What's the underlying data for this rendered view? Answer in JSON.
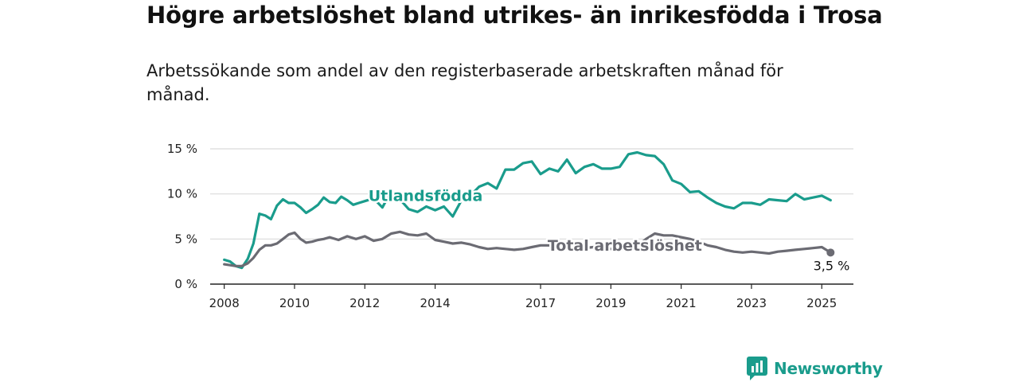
{
  "title": "Högre arbetslöshet bland utrikes- än inrikesfödda i Trosa",
  "subtitle": "Arbetssökande som andel av den registerbaserade arbetskraften månad för månad.",
  "brand": {
    "name": "Newsworthy",
    "icon": "newsworthy-logo-icon",
    "color": "#1a9c8c"
  },
  "chart_data": {
    "type": "line",
    "title": "",
    "xlabel": "",
    "ylabel": "",
    "ylim": [
      0,
      15
    ],
    "xlim": [
      2007.6,
      2025.9
    ],
    "yticks": [
      {
        "value": 0,
        "label": "0 %"
      },
      {
        "value": 5,
        "label": "5 %"
      },
      {
        "value": 10,
        "label": "10 %"
      },
      {
        "value": 15,
        "label": "15 %"
      }
    ],
    "xticks": [
      {
        "value": 2008,
        "label": "2008"
      },
      {
        "value": 2010,
        "label": "2010"
      },
      {
        "value": 2012,
        "label": "2012"
      },
      {
        "value": 2014,
        "label": "2014"
      },
      {
        "value": 2017,
        "label": "2017"
      },
      {
        "value": 2019,
        "label": "2019"
      },
      {
        "value": 2021,
        "label": "2021"
      },
      {
        "value": 2023,
        "label": "2023"
      },
      {
        "value": 2025,
        "label": "2025"
      }
    ],
    "grid": true,
    "series": [
      {
        "name": "Utlandsfödda",
        "color": "#1a9c8c",
        "x": [
          2008.0,
          2008.17,
          2008.33,
          2008.5,
          2008.67,
          2008.83,
          2009.0,
          2009.17,
          2009.33,
          2009.5,
          2009.67,
          2009.83,
          2010.0,
          2010.17,
          2010.33,
          2010.5,
          2010.67,
          2010.83,
          2011.0,
          2011.17,
          2011.33,
          2011.5,
          2011.67,
          2011.83,
          2012.0,
          2012.25,
          2012.5,
          2012.75,
          2013.0,
          2013.25,
          2013.5,
          2013.75,
          2014.0,
          2014.25,
          2014.5,
          2014.75,
          2015.0,
          2015.25,
          2015.5,
          2015.75,
          2016.0,
          2016.25,
          2016.5,
          2016.75,
          2017.0,
          2017.25,
          2017.5,
          2017.75,
          2018.0,
          2018.25,
          2018.5,
          2018.75,
          2019.0,
          2019.25,
          2019.5,
          2019.75,
          2020.0,
          2020.25,
          2020.5,
          2020.75,
          2021.0,
          2021.25,
          2021.5,
          2021.75,
          2022.0,
          2022.25,
          2022.5,
          2022.75,
          2023.0,
          2023.25,
          2023.5,
          2023.75,
          2024.0,
          2024.25,
          2024.5,
          2024.75,
          2025.0,
          2025.25
        ],
        "y": [
          2.7,
          2.5,
          2.0,
          1.8,
          2.8,
          4.5,
          7.8,
          7.6,
          7.2,
          8.7,
          9.4,
          9.0,
          9.0,
          8.5,
          7.9,
          8.3,
          8.8,
          9.6,
          9.1,
          9.0,
          9.7,
          9.3,
          8.8,
          9.0,
          9.2,
          9.5,
          8.5,
          10.3,
          9.4,
          8.3,
          8.0,
          8.6,
          8.2,
          8.6,
          7.5,
          9.3,
          9.8,
          10.8,
          11.2,
          10.6,
          12.7,
          12.7,
          13.4,
          13.6,
          12.2,
          12.8,
          12.5,
          13.8,
          12.3,
          13.0,
          13.3,
          12.8,
          12.8,
          13.0,
          14.4,
          14.6,
          14.3,
          14.2,
          13.3,
          11.5,
          11.1,
          10.2,
          10.3,
          9.6,
          9.0,
          8.6,
          8.4,
          9.0,
          9.0,
          8.8,
          9.4,
          9.3,
          9.2,
          10.0,
          9.4,
          9.6,
          9.8,
          9.3
        ]
      },
      {
        "name": "Total arbetslöshet",
        "color": "#6b6b73",
        "x": [
          2008.0,
          2008.17,
          2008.33,
          2008.5,
          2008.67,
          2008.83,
          2009.0,
          2009.17,
          2009.33,
          2009.5,
          2009.67,
          2009.83,
          2010.0,
          2010.17,
          2010.33,
          2010.5,
          2010.67,
          2010.83,
          2011.0,
          2011.25,
          2011.5,
          2011.75,
          2012.0,
          2012.25,
          2012.5,
          2012.75,
          2013.0,
          2013.25,
          2013.5,
          2013.75,
          2014.0,
          2014.25,
          2014.5,
          2014.75,
          2015.0,
          2015.25,
          2015.5,
          2015.75,
          2016.0,
          2016.25,
          2016.5,
          2016.75,
          2017.0,
          2017.25,
          2017.5,
          2017.75,
          2018.0,
          2018.25,
          2018.5,
          2018.75,
          2019.0,
          2019.25,
          2019.5,
          2019.75,
          2020.0,
          2020.25,
          2020.5,
          2020.75,
          2021.0,
          2021.25,
          2021.5,
          2021.75,
          2022.0,
          2022.25,
          2022.5,
          2022.75,
          2023.0,
          2023.25,
          2023.5,
          2023.75,
          2024.0,
          2024.25,
          2024.5,
          2024.75,
          2025.0,
          2025.25
        ],
        "y": [
          2.2,
          2.1,
          2.0,
          2.0,
          2.3,
          2.9,
          3.8,
          4.3,
          4.3,
          4.5,
          5.0,
          5.5,
          5.7,
          5.0,
          4.6,
          4.7,
          4.9,
          5.0,
          5.2,
          4.9,
          5.3,
          5.0,
          5.3,
          4.8,
          5.0,
          5.6,
          5.8,
          5.5,
          5.4,
          5.6,
          4.9,
          4.7,
          4.5,
          4.6,
          4.4,
          4.1,
          3.9,
          4.0,
          3.9,
          3.8,
          3.9,
          4.1,
          4.3,
          4.3,
          4.2,
          4.1,
          4.0,
          4.0,
          4.1,
          4.0,
          3.9,
          3.9,
          4.0,
          4.2,
          5.0,
          5.6,
          5.4,
          5.4,
          5.2,
          5.0,
          4.7,
          4.3,
          4.1,
          3.8,
          3.6,
          3.5,
          3.6,
          3.5,
          3.4,
          3.6,
          3.7,
          3.8,
          3.9,
          4.0,
          4.1,
          3.5
        ]
      }
    ],
    "annotations": [
      {
        "text": "3,5 %",
        "series": "Total arbetslöshet",
        "x": 2025.25,
        "y": 3.5
      }
    ]
  }
}
